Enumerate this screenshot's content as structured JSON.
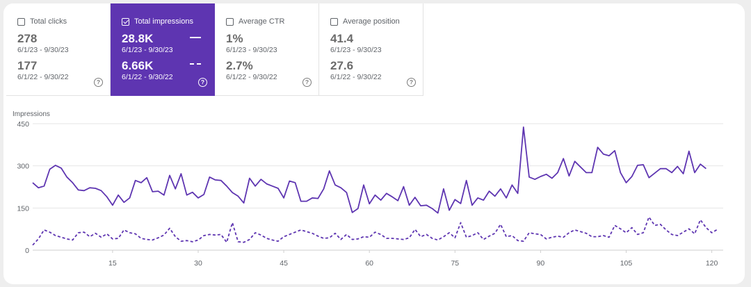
{
  "metrics": [
    {
      "label": "Total clicks",
      "value_current": "278",
      "range_current": "6/1/23 - 9/30/23",
      "value_previous": "177",
      "range_previous": "6/1/22 - 9/30/22",
      "checked": false
    },
    {
      "label": "Total impressions",
      "value_current": "28.8K",
      "range_current": "6/1/23 - 9/30/23",
      "value_previous": "6.66K",
      "range_previous": "6/1/22 - 9/30/22",
      "checked": true
    },
    {
      "label": "Average CTR",
      "value_current": "1%",
      "range_current": "6/1/23 - 9/30/23",
      "value_previous": "2.7%",
      "range_previous": "6/1/22 - 9/30/22",
      "checked": false
    },
    {
      "label": "Average position",
      "value_current": "41.4",
      "range_current": "6/1/23 - 9/30/23",
      "value_previous": "27.6",
      "range_previous": "6/1/22 - 9/30/22",
      "checked": false
    }
  ],
  "help_glyph": "?",
  "colors": {
    "accent": "#5e35b1",
    "grid": "#e6e6e6",
    "text": "#5f6368"
  },
  "chart_data": {
    "type": "line",
    "ylabel": "Impressions",
    "ylim": [
      0,
      450
    ],
    "yticks": [
      0,
      150,
      300,
      450
    ],
    "xticks": [
      15,
      30,
      45,
      60,
      75,
      90,
      105,
      120
    ],
    "xlim": [
      1,
      122
    ],
    "series": [
      {
        "style": "solid",
        "values": [
          240,
          222,
          228,
          288,
          302,
          292,
          260,
          240,
          214,
          212,
          222,
          220,
          212,
          190,
          160,
          196,
          170,
          186,
          248,
          240,
          258,
          208,
          210,
          196,
          266,
          218,
          272,
          196,
          206,
          186,
          198,
          260,
          250,
          248,
          228,
          205,
          192,
          168,
          256,
          228,
          252,
          236,
          228,
          220,
          186,
          246,
          240,
          174,
          174,
          186,
          184,
          218,
          282,
          232,
          222,
          205,
          134,
          148,
          232,
          165,
          196,
          178,
          202,
          190,
          176,
          226,
          160,
          188,
          158,
          160,
          148,
          132,
          218,
          142,
          180,
          166,
          248,
          160,
          186,
          178,
          210,
          192,
          218,
          186,
          232,
          202,
          438,
          260,
          252,
          262,
          270,
          256,
          276,
          326,
          264,
          316,
          296,
          276,
          276,
          366,
          342,
          336,
          354,
          276,
          240,
          262,
          302,
          304,
          258,
          274,
          290,
          290,
          276,
          298,
          272,
          352,
          276,
          306,
          290
        ]
      },
      {
        "style": "dashed",
        "values": [
          18,
          40,
          72,
          64,
          52,
          46,
          40,
          36,
          62,
          64,
          48,
          60,
          46,
          58,
          40,
          42,
          72,
          62,
          58,
          42,
          38,
          36,
          44,
          54,
          78,
          48,
          32,
          34,
          30,
          36,
          52,
          56,
          54,
          56,
          28,
          98,
          30,
          28,
          38,
          62,
          54,
          42,
          36,
          32,
          48,
          56,
          64,
          72,
          66,
          60,
          50,
          42,
          44,
          60,
          38,
          56,
          38,
          40,
          48,
          46,
          64,
          56,
          42,
          42,
          40,
          38,
          44,
          74,
          48,
          56,
          42,
          36,
          48,
          62,
          44,
          98,
          46,
          52,
          62,
          38,
          50,
          60,
          92,
          48,
          52,
          34,
          32,
          62,
          58,
          56,
          40,
          46,
          50,
          46,
          62,
          72,
          66,
          60,
          48,
          48,
          52,
          46,
          88,
          76,
          62,
          80,
          56,
          62,
          118,
          88,
          92,
          72,
          56,
          52,
          64,
          76,
          58,
          108,
          80,
          62,
          74
        ]
      }
    ]
  }
}
